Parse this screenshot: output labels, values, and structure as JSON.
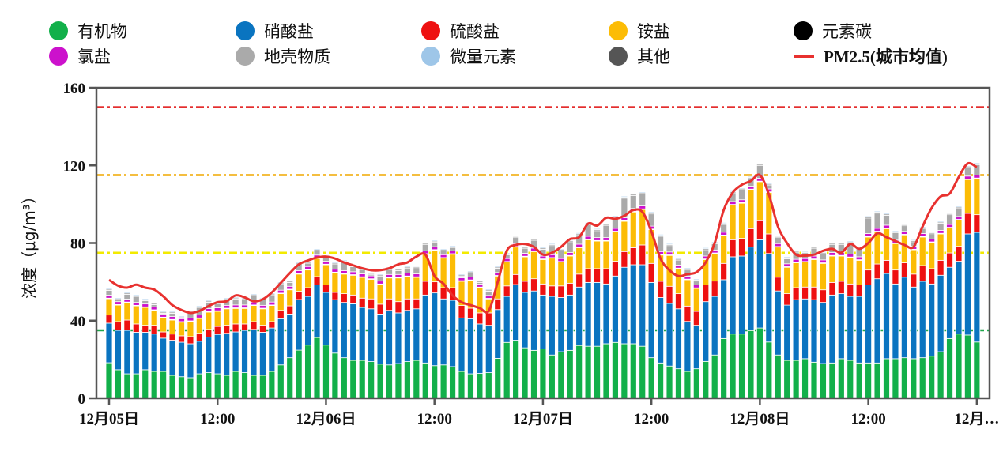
{
  "chart_data": {
    "type": "bar",
    "stacked": true,
    "title": "",
    "xlabel": "",
    "ylabel": "浓度（μg/m³）",
    "ylim": [
      0,
      160
    ],
    "yticks": [
      0,
      40,
      80,
      120,
      160
    ],
    "x_interval": "hourly",
    "xtick_labels": [
      "12月05日",
      "12:00",
      "12月06日",
      "12:00",
      "12月07日",
      "12:00",
      "12月08日",
      "12:00",
      "12月…"
    ],
    "legend_placement": "top",
    "grid": false,
    "series": [
      {
        "name": "有机物",
        "color": "#12b04a",
        "values": [
          18.3,
          14.7,
          12.6,
          12.6,
          14.7,
          13.8,
          13.8,
          11.8,
          11.1,
          10.6,
          12.6,
          13.2,
          12.6,
          11.8,
          13.8,
          13.2,
          11.8,
          11.8,
          13.8,
          17.2,
          20.9,
          24.8,
          27.4,
          31.3,
          27.4,
          23.3,
          20.9,
          19.5,
          19.5,
          18.9,
          17.6,
          17.2,
          17.9,
          18.9,
          19.5,
          18.2,
          16.8,
          17.2,
          16.3,
          13.8,
          12.6,
          12.8,
          13.2,
          20.6,
          28.8,
          29.9,
          26,
          24.7,
          25.4,
          22.3,
          24,
          24.7,
          27.2,
          26.8,
          26.8,
          28.1,
          28.8,
          28.1,
          28.1,
          26.8,
          20.9,
          18.2,
          16.6,
          15.2,
          13.8,
          15.2,
          19,
          22.3,
          30.8,
          33.1,
          33.1,
          34.9,
          36.2,
          29,
          22.3,
          19.5,
          19.5,
          20.4,
          18.6,
          17.9,
          18.2,
          20.4,
          19.5,
          18.2,
          18.2,
          18.2,
          20.4,
          20.4,
          20.9,
          20.4,
          20.9,
          21.7,
          24,
          30.8,
          33.1,
          32.6,
          29
        ]
      },
      {
        "name": "硝酸盐",
        "color": "#0a74c0",
        "values": [
          20.4,
          20.3,
          22.4,
          21.4,
          19.3,
          19.3,
          17.2,
          18.1,
          17.8,
          17.5,
          16.8,
          18.3,
          20.3,
          21.7,
          20.4,
          21.8,
          23.7,
          22.2,
          22.4,
          23.8,
          22.5,
          26.1,
          25.1,
          27.1,
          27.2,
          27.5,
          28.5,
          29.2,
          27.3,
          27.2,
          25.8,
          28.1,
          26.1,
          26.4,
          26.6,
          35.0,
          37.5,
          34.0,
          34.2,
          27.6,
          28.4,
          25.5,
          24.4,
          25.1,
          23.7,
          28.7,
          28.6,
          30.6,
          27.8,
          30.2,
          27.9,
          28.5,
          30.1,
          32.9,
          32.9,
          30.8,
          34.2,
          39.4,
          40.7,
          42.0,
          38.8,
          33.7,
          32.3,
          30.9,
          25.8,
          22.4,
          30.8,
          30.2,
          30.3,
          39.8,
          40.2,
          43.0,
          45.5,
          45.6,
          33.0,
          28.5,
          31.3,
          30.8,
          32.2,
          31.5,
          35.0,
          33.5,
          33.0,
          34.3,
          40.2,
          43.4,
          43.9,
          38.5,
          41.5,
          36.9,
          39.4,
          37.2,
          39.4,
          36.7,
          37.5,
          52.1,
          56.5
        ]
      },
      {
        "name": "硫酸盐",
        "color": "#ee1111",
        "values": [
          4.2,
          4.5,
          5.3,
          4.3,
          3.6,
          4.5,
          3.2,
          3.2,
          3.3,
          3.7,
          4.1,
          4.0,
          4.1,
          4.1,
          4.1,
          3.3,
          4.0,
          3.6,
          3.3,
          4.3,
          4.2,
          4.2,
          4.5,
          4.3,
          3.8,
          3.8,
          4.5,
          4.5,
          4.8,
          5.1,
          5.1,
          5.9,
          5.8,
          5.9,
          5.1,
          7.1,
          5.7,
          5.8,
          6.5,
          6.4,
          5.4,
          5.7,
          6.4,
          5.5,
          5.4,
          5.2,
          5.7,
          6.3,
          5.7,
          5.4,
          6.0,
          6.1,
          6.7,
          7.1,
          7.1,
          7.9,
          7.6,
          8.1,
          8.8,
          10.2,
          9.8,
          8.4,
          8.8,
          7.8,
          7.9,
          7.2,
          8.6,
          7.9,
          8.4,
          8.8,
          9.1,
          9.5,
          9.8,
          10.1,
          7.1,
          5.9,
          6.2,
          6.1,
          6.5,
          6.5,
          6.5,
          6.4,
          6.4,
          5.9,
          7.7,
          7.6,
          6.8,
          7.2,
          7.4,
          6.7,
          8.1,
          7.9,
          7.7,
          7.4,
          7.7,
          10.6,
          9.1
        ]
      },
      {
        "name": "铵盐",
        "color": "#fcbc05",
        "values": [
          8.4,
          8.5,
          9.0,
          9.3,
          9.2,
          7.7,
          7.3,
          7.2,
          7.0,
          7.8,
          7.6,
          8.9,
          7.8,
          8.5,
          8.0,
          8.0,
          8.3,
          8.5,
          8.3,
          8.6,
          8.3,
          8.9,
          9.1,
          9.3,
          10.4,
          10.1,
          10.1,
          10.2,
          10.7,
          10.1,
          10.1,
          10.8,
          12.2,
          11.5,
          11.1,
          13.9,
          16.3,
          15.2,
          17.2,
          12.5,
          14.3,
          13.0,
          7.2,
          11.8,
          12.3,
          14.1,
          12.6,
          14.0,
          12.6,
          14.3,
          12.3,
          14.0,
          13.6,
          14.9,
          14.2,
          14.2,
          15.2,
          15.6,
          18.4,
          18.3,
          17.4,
          13.5,
          15.9,
          12.9,
          13.6,
          11.8,
          13.1,
          14.2,
          14.3,
          17.9,
          18.1,
          20.1,
          20.1,
          21.4,
          15.5,
          13.6,
          12.8,
          12.9,
          14.2,
          13.6,
          13.6,
          13.0,
          13.6,
          12.7,
          17.0,
          16.6,
          16.3,
          13.6,
          14.4,
          12.5,
          14.7,
          13.5,
          13.6,
          12.9,
          13.6,
          17.4,
          18.6
        ]
      },
      {
        "name": "元素碳",
        "color": "#000000",
        "values": [
          0.3,
          0.3,
          0.3,
          0.3,
          0.3,
          0.3,
          0.3,
          0.3,
          0.3,
          0.3,
          0.3,
          0.3,
          0.3,
          0.3,
          0.3,
          0.3,
          0.3,
          0.3,
          0.3,
          0.3,
          0.3,
          0.3,
          0.3,
          0.3,
          0.3,
          0.3,
          0.3,
          0.3,
          0.3,
          0.3,
          0.3,
          0.3,
          0.3,
          0.3,
          0.3,
          0.3,
          0.3,
          0.3,
          0.3,
          0.3,
          0.3,
          0.3,
          0.3,
          0.3,
          0.3,
          0.3,
          0.3,
          0.3,
          0.3,
          0.3,
          0.3,
          0.3,
          0.3,
          0.3,
          0.3,
          0.3,
          0.3,
          0.3,
          0.3,
          0.3,
          0.3,
          0.3,
          0.3,
          0.3,
          0.3,
          0.3,
          0.3,
          0.3,
          0.3,
          0.3,
          0.3,
          0.3,
          0.3,
          0.3,
          0.3,
          0.3,
          0.3,
          0.3,
          0.3,
          0.3,
          0.3,
          0.3,
          0.3,
          0.3,
          0.3,
          0.3,
          0.3,
          0.3,
          0.3,
          0.3,
          0.3,
          0.3,
          0.3,
          0.3,
          0.3,
          0.3,
          0.3
        ]
      },
      {
        "name": "氯盐",
        "color": "#cc11cc",
        "values": [
          1.5,
          1.5,
          1.5,
          1.5,
          1.5,
          1.5,
          1.5,
          1.5,
          1.5,
          1.5,
          1.5,
          1.5,
          1.5,
          1.5,
          1.5,
          1.5,
          1.5,
          1.5,
          1.5,
          1.5,
          1.5,
          1.5,
          1.5,
          1.5,
          1.5,
          1.5,
          1.5,
          1.5,
          1.5,
          1.5,
          1.5,
          1.5,
          1.5,
          1.5,
          1.5,
          1.5,
          1.5,
          1.5,
          1.5,
          1.5,
          1.5,
          1.5,
          1.5,
          1.5,
          1.5,
          1.5,
          1.5,
          1.5,
          1.5,
          1.5,
          1.5,
          1.5,
          1.5,
          1.5,
          1.5,
          1.5,
          1.5,
          1.5,
          1.5,
          1.5,
          1.5,
          1.5,
          1.5,
          1.5,
          1.5,
          1.5,
          1.5,
          1.5,
          1.5,
          1.5,
          1.5,
          1.5,
          1.5,
          1.5,
          1.5,
          1.5,
          1.5,
          1.5,
          1.5,
          1.5,
          1.5,
          1.5,
          1.5,
          1.5,
          1.5,
          1.5,
          1.5,
          1.5,
          1.5,
          1.5,
          1.5,
          1.5,
          1.5,
          1.5,
          1.5,
          1.5,
          1.5
        ]
      },
      {
        "name": "地壳物质",
        "color": "#aaaaaa",
        "values": [
          2.5,
          0.9,
          2.5,
          3.1,
          1.7,
          1.2,
          0.5,
          1.7,
          0.3,
          2.4,
          3.9,
          3.3,
          2.2,
          2.8,
          3.0,
          2.6,
          3.3,
          2.8,
          3.7,
          3.3,
          2.0,
          3.4,
          1.7,
          2.2,
          2.1,
          2.7,
          4.4,
          2.6,
          2.3,
          0.6,
          2.6,
          2.6,
          2.0,
          2.6,
          3.2,
          3.3,
          2.3,
          2.0,
          1.7,
          0.9,
          2.2,
          0.9,
          2.2,
          2.2,
          1.9,
          3.1,
          2.6,
          4.0,
          3.5,
          4.7,
          4.0,
          5.6,
          4.9,
          6.1,
          3.6,
          6.3,
          5.6,
          10.1,
          6.7,
          6.3,
          6.3,
          7.9,
          3.3,
          2.6,
          3.2,
          2.0,
          3.3,
          3.2,
          4.0,
          4.5,
          5.0,
          4.0,
          6.6,
          2.0,
          3.1,
          2.6,
          3.7,
          2.6,
          4.0,
          3.3,
          4.2,
          4.2,
          5.7,
          4.2,
          8.0,
          7.8,
          5.1,
          3.9,
          2.9,
          2.4,
          2.6,
          2.7,
          3.7,
          5.0,
          4.4,
          4.2,
          5.3
        ]
      },
      {
        "name": "其他",
        "color": "#555555",
        "values": [
          0.5,
          0.5,
          0.5,
          0.5,
          0.5,
          0.5,
          0.5,
          0.5,
          0.5,
          0.5,
          0.5,
          0.5,
          0.5,
          0.5,
          0.5,
          0.5,
          0.5,
          0.5,
          0.5,
          0.5,
          0.5,
          0.5,
          0.5,
          0.5,
          0.5,
          0.5,
          0.5,
          0.5,
          0.5,
          0.5,
          0.5,
          0.5,
          0.5,
          0.5,
          0.5,
          0.5,
          0.5,
          0.5,
          0.5,
          0.5,
          0.5,
          0.5,
          0.5,
          0.5,
          0.5,
          0.5,
          0.5,
          0.5,
          0.5,
          0.5,
          0.5,
          0.5,
          0.5,
          0.5,
          0.5,
          0.5,
          0.5,
          0.5,
          0.5,
          0.5,
          0.5,
          0.5,
          0.5,
          0.5,
          0.5,
          0.5,
          0.5,
          0.5,
          0.5,
          0.5,
          0.5,
          0.5,
          0.5,
          0.5,
          0.5,
          0.5,
          0.5,
          0.5,
          0.5,
          0.5,
          0.5,
          0.5,
          0.5,
          0.5,
          0.5,
          0.5,
          0.5,
          0.5,
          0.5,
          0.5,
          0.5,
          0.5,
          0.5,
          0.5,
          0.5,
          0.5,
          0.5
        ]
      },
      {
        "name": "微量元素",
        "color": "#9ec6e8",
        "values": [
          0.5,
          0.5,
          0.5,
          0.5,
          0.5,
          0.5,
          0.5,
          0.5,
          0.5,
          0.5,
          0.5,
          0.5,
          0.5,
          0.5,
          0.5,
          0.5,
          0.5,
          0.5,
          0.5,
          0.5,
          0.5,
          0.5,
          0.5,
          0.5,
          0.5,
          0.5,
          0.5,
          0.5,
          0.5,
          0.5,
          0.5,
          0.5,
          0.5,
          0.5,
          0.5,
          0.5,
          0.5,
          0.5,
          0.5,
          0.5,
          0.5,
          0.5,
          0.5,
          0.5,
          0.5,
          0.5,
          0.5,
          0.5,
          0.5,
          0.5,
          0.5,
          0.5,
          0.5,
          0.5,
          0.5,
          0.5,
          0.5,
          0.5,
          0.5,
          0.5,
          0.5,
          0.5,
          0.5,
          0.5,
          0.5,
          0.5,
          0.5,
          0.5,
          0.5,
          0.5,
          0.5,
          0.5,
          0.5,
          0.5,
          0.5,
          0.5,
          0.5,
          0.5,
          0.5,
          0.5,
          0.5,
          0.5,
          0.5,
          0.5,
          0.5,
          0.5,
          0.5,
          0.5,
          0.5,
          0.5,
          0.5,
          0.5,
          0.5,
          0.5,
          0.5,
          0.5,
          0.5
        ]
      }
    ],
    "line": {
      "name": "PM2.5(城市均值)",
      "color": "#e8312f",
      "values": [
        61,
        58,
        57,
        58.5,
        57,
        56,
        52.5,
        48,
        45.5,
        44,
        45,
        47.5,
        49.5,
        50,
        53,
        52,
        50,
        51,
        54.5,
        59.5,
        64.5,
        69,
        71,
        72.5,
        73,
        72,
        70,
        68.5,
        67,
        66,
        66,
        67,
        69,
        70,
        73,
        74,
        63,
        59,
        53,
        49.5,
        48,
        46.5,
        45,
        60,
        76,
        79,
        79.5,
        78,
        74,
        75,
        78,
        82,
        83,
        90,
        89,
        93,
        92.5,
        94,
        97,
        96,
        86,
        72,
        66,
        63,
        64,
        65,
        70,
        80,
        97,
        106,
        110,
        112,
        115,
        105,
        88.5,
        80,
        74,
        73.5,
        74,
        76,
        77,
        75,
        79.5,
        77,
        80,
        85,
        83,
        81,
        79,
        78,
        88.5,
        98,
        104,
        105.5,
        114,
        121,
        119
      ]
    },
    "reference_lines": [
      {
        "value": 150,
        "color": "#e01010"
      },
      {
        "value": 115,
        "color": "#f0a800"
      },
      {
        "value": 75,
        "color": "#f2ea00"
      },
      {
        "value": 35,
        "color": "#1fa64a"
      }
    ]
  },
  "legend": [
    {
      "label": "有机物",
      "color": "#12b04a",
      "marker": "dot"
    },
    {
      "label": "硝酸盐",
      "color": "#0a74c0",
      "marker": "dot"
    },
    {
      "label": "硫酸盐",
      "color": "#ee1111",
      "marker": "dot"
    },
    {
      "label": "铵盐",
      "color": "#fcbc05",
      "marker": "dot"
    },
    {
      "label": "元素碳",
      "color": "#000000",
      "marker": "dot"
    },
    {
      "label": "氯盐",
      "color": "#cc11cc",
      "marker": "dot"
    },
    {
      "label": "地壳物质",
      "color": "#aaaaaa",
      "marker": "dot"
    },
    {
      "label": "微量元素",
      "color": "#9ec6e8",
      "marker": "dot"
    },
    {
      "label": "其他",
      "color": "#555555",
      "marker": "dot"
    },
    {
      "label": "PM2.5(城市均值)",
      "color": "#e8312f",
      "marker": "line"
    }
  ]
}
